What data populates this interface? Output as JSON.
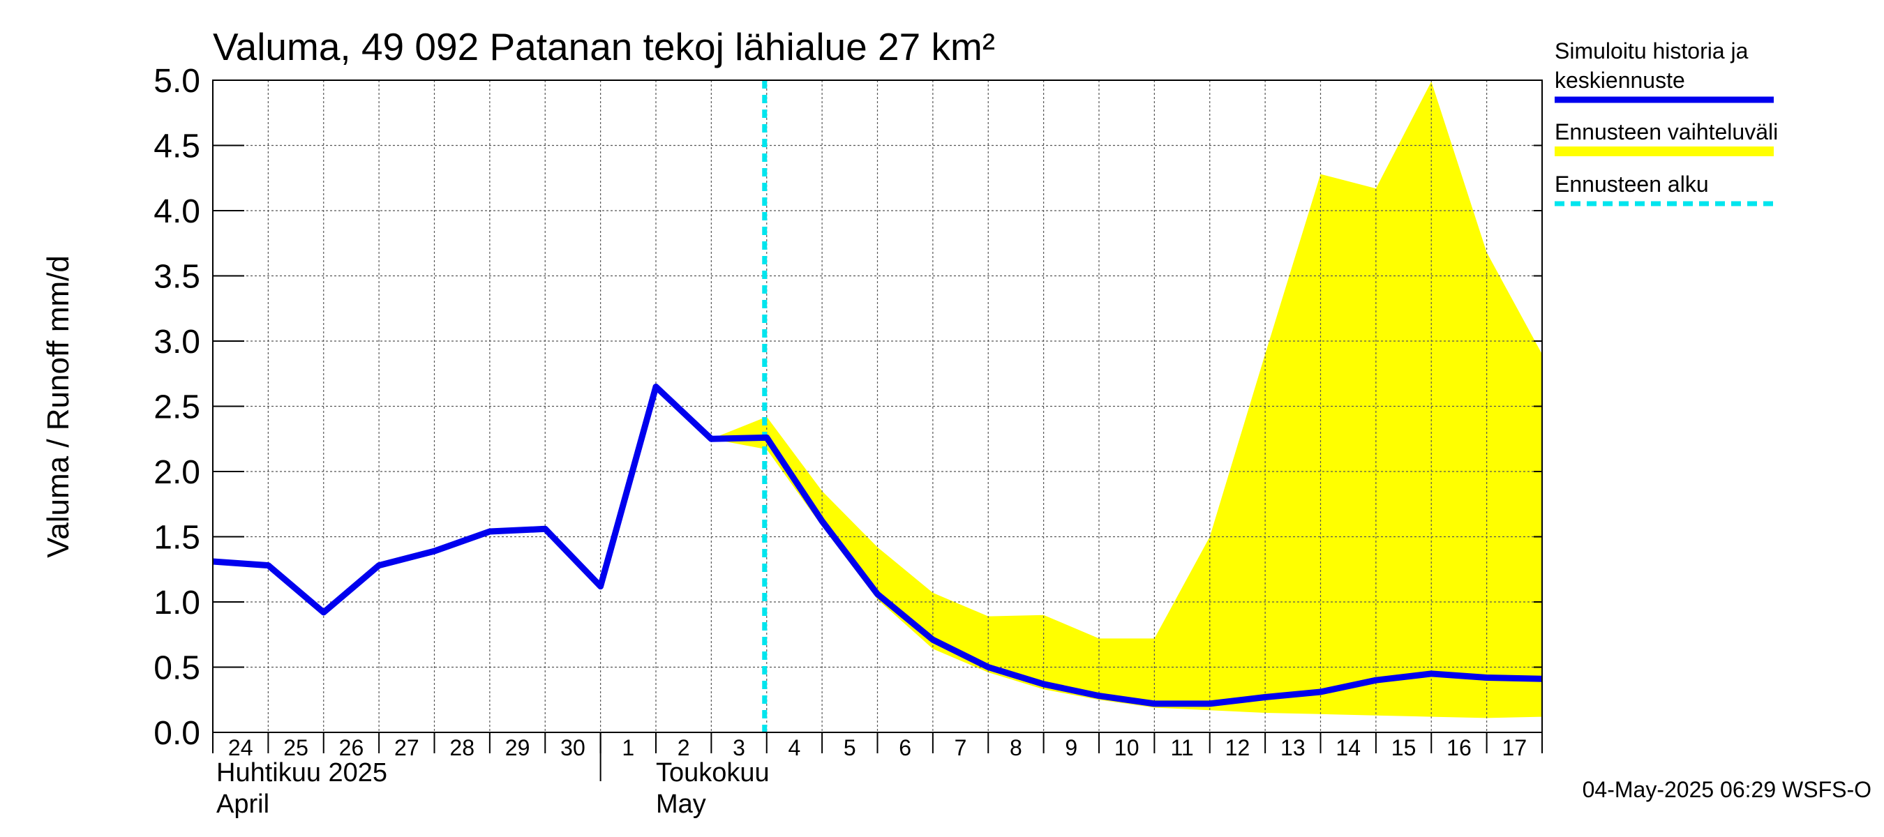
{
  "chart_data": {
    "type": "line",
    "title": "Valuma, 49 092 Patanan tekoj lähialue 27 km²",
    "ylabel": "Valuma / Runoff     mm/d",
    "ylim": [
      0,
      5
    ],
    "yticks": [
      "0.0",
      "0.5",
      "1.0",
      "1.5",
      "2.0",
      "2.5",
      "3.0",
      "3.5",
      "4.0",
      "4.5",
      "5.0"
    ],
    "x_day_labels": [
      "24",
      "25",
      "26",
      "27",
      "28",
      "29",
      "30",
      "1",
      "2",
      "3",
      "4",
      "5",
      "6",
      "7",
      "8",
      "9",
      "10",
      "11",
      "12",
      "13",
      "14",
      "15",
      "16",
      "17"
    ],
    "month_labels": [
      {
        "line1": "Huhtikuu  2025",
        "line2": "April"
      },
      {
        "line1": "Toukokuu",
        "line2": "May"
      }
    ],
    "grid": true,
    "forecast_start": "2025-05-04",
    "series": [
      {
        "name": "Simuloitu historia ja keskiennuste",
        "color": "#0000ee",
        "x": [
          "2025-04-24",
          "2025-04-25",
          "2025-04-26",
          "2025-04-27",
          "2025-04-28",
          "2025-04-29",
          "2025-04-30",
          "2025-05-01",
          "2025-05-02",
          "2025-05-03",
          "2025-05-04",
          "2025-05-05",
          "2025-05-06",
          "2025-05-07",
          "2025-05-08",
          "2025-05-09",
          "2025-05-10",
          "2025-05-11",
          "2025-05-12",
          "2025-05-13",
          "2025-05-14",
          "2025-05-15",
          "2025-05-16",
          "2025-05-17",
          "2025-05-18"
        ],
        "values": [
          1.31,
          1.28,
          0.92,
          1.28,
          1.39,
          1.54,
          1.56,
          1.12,
          2.65,
          2.25,
          2.26,
          1.62,
          1.06,
          0.71,
          0.5,
          0.37,
          0.28,
          0.22,
          0.22,
          0.27,
          0.31,
          0.4,
          0.45,
          0.42,
          0.41
        ]
      },
      {
        "name": "Ennusteen vaihteluväli",
        "color": "#ffff00",
        "x": [
          "2025-05-03",
          "2025-05-04",
          "2025-05-05",
          "2025-05-06",
          "2025-05-07",
          "2025-05-08",
          "2025-05-09",
          "2025-05-10",
          "2025-05-11",
          "2025-05-12",
          "2025-05-13",
          "2025-05-14",
          "2025-05-15",
          "2025-05-16",
          "2025-05-17",
          "2025-05-18"
        ],
        "upper": [
          2.25,
          2.42,
          1.85,
          1.42,
          1.07,
          0.89,
          0.9,
          0.72,
          0.72,
          1.5,
          2.9,
          4.28,
          4.17,
          4.99,
          3.68,
          2.9
        ],
        "lower": [
          2.25,
          2.17,
          1.58,
          1.02,
          0.64,
          0.46,
          0.33,
          0.25,
          0.19,
          0.17,
          0.15,
          0.14,
          0.13,
          0.12,
          0.11,
          0.12
        ]
      },
      {
        "name": "Ennusteen alku",
        "color": "#00e5ee"
      }
    ]
  },
  "legend": {
    "items": [
      {
        "line1": "Simuloitu historia ja",
        "line2": "keskiennuste",
        "color": "#0000ee"
      },
      {
        "line1": "Ennusteen vaihteluväli",
        "color": "#ffff00"
      },
      {
        "line1": "Ennusteen alku",
        "color": "#00e5ee"
      }
    ]
  },
  "footer": "04-May-2025 06:29 WSFS-O"
}
